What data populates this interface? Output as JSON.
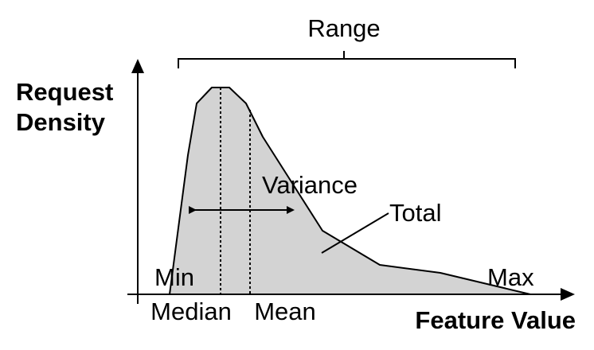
{
  "diagram": {
    "range_label": "Range",
    "y_label_line1": "Request",
    "y_label_line2": "Density",
    "x_label": "Feature Value",
    "variance_label": "Variance",
    "total_label": "Total",
    "min_label": "Min",
    "max_label": "Max",
    "median_label": "Median",
    "mean_label": "Mean"
  },
  "colors": {
    "fill": "#d3d3d3",
    "stroke": "#000000",
    "background": "#ffffff"
  }
}
